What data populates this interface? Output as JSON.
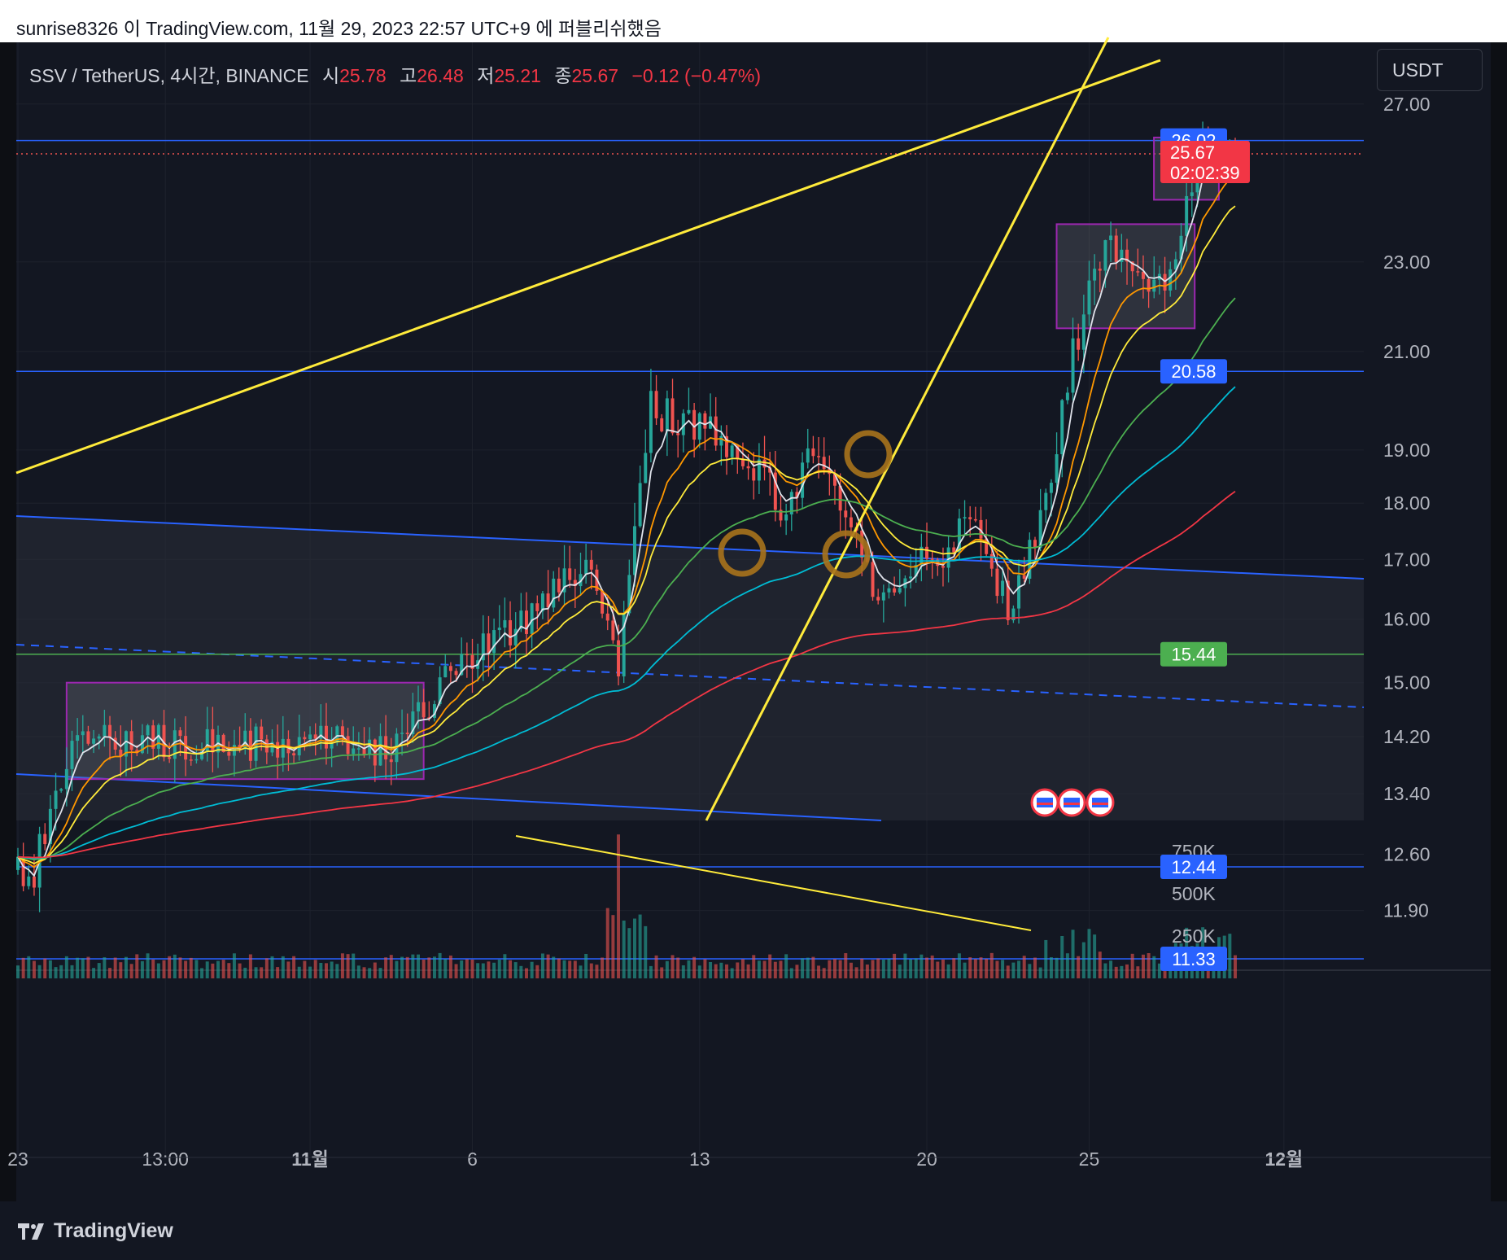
{
  "caption": "sunrise8326 이 TradingView.com, 11월 29, 2023 22:57 UTC+9 에 퍼블리쉬했음",
  "legend": {
    "symbol": "SSV / TetherUS, 4시간, BINANCE",
    "open_label": "시",
    "open": "25.78",
    "high_label": "고",
    "high": "26.48",
    "low_label": "저",
    "low": "25.21",
    "close_label": "종",
    "close": "25.67",
    "change": "−0.12 (−0.47%)"
  },
  "currency": "USDT",
  "brand": "TradingView",
  "colors": {
    "background": "#131722",
    "up": "#26a69a",
    "down": "#ef5350",
    "trendline": "#ffeb3b",
    "hline": "#2962ff",
    "support": "#4caf50",
    "box_border": "#9c27b0",
    "highlight_circle": "#a8731c"
  },
  "chart_data": {
    "type": "candlestick",
    "timeframe": "4h",
    "scale": "log",
    "x_ticks": [
      "23",
      "13:00",
      "11월",
      "6",
      "13",
      "20",
      "25",
      "12월"
    ],
    "y_ticks": [
      "27.00",
      "23.00",
      "21.00",
      "19.00",
      "18.00",
      "17.00",
      "16.00",
      "15.00",
      "14.20",
      "13.40",
      "12.60",
      "11.90"
    ],
    "volume_ticks": [
      "750K",
      "500K",
      "250K"
    ],
    "price_badges": [
      {
        "label": "26.02",
        "value": 26.02,
        "kind": "level"
      },
      {
        "label": "20.58",
        "value": 20.58,
        "kind": "level"
      },
      {
        "label": "15.44",
        "value": 15.44,
        "kind": "support"
      },
      {
        "label": "12.44",
        "value": 12.44,
        "kind": "level"
      },
      {
        "label": "11.33",
        "value": 11.33,
        "kind": "level"
      }
    ],
    "last_price": {
      "value": "25.67",
      "countdown": "02:02:39"
    },
    "ohlc_last": {
      "open": 25.78,
      "high": 26.48,
      "low": 25.21,
      "close": 25.67
    },
    "close_series_approx": [
      {
        "date": "2023-10-23",
        "close": 12.4
      },
      {
        "date": "2023-10-24",
        "close": 14.0
      },
      {
        "date": "2023-10-26",
        "close": 14.2
      },
      {
        "date": "2023-10-29",
        "close": 14.1
      },
      {
        "date": "2023-11-01",
        "close": 14.2
      },
      {
        "date": "2023-11-03",
        "close": 14.0
      },
      {
        "date": "2023-11-05",
        "close": 15.3
      },
      {
        "date": "2023-11-07",
        "close": 16.0
      },
      {
        "date": "2023-11-09",
        "close": 16.8
      },
      {
        "date": "2023-11-10",
        "close": 15.4
      },
      {
        "date": "2023-11-11",
        "close": 19.8
      },
      {
        "date": "2023-11-13",
        "close": 19.4
      },
      {
        "date": "2023-11-15",
        "close": 18.0
      },
      {
        "date": "2023-11-16",
        "close": 18.9
      },
      {
        "date": "2023-11-18",
        "close": 16.3
      },
      {
        "date": "2023-11-19",
        "close": 16.8
      },
      {
        "date": "2023-11-21",
        "close": 17.6
      },
      {
        "date": "2023-11-22",
        "close": 16.1
      },
      {
        "date": "2023-11-23",
        "close": 17.6
      },
      {
        "date": "2023-11-24",
        "close": 21.0
      },
      {
        "date": "2023-11-25",
        "close": 23.5
      },
      {
        "date": "2023-11-26",
        "close": 22.9
      },
      {
        "date": "2023-11-27",
        "close": 22.5
      },
      {
        "date": "2023-11-28",
        "close": 25.9
      },
      {
        "date": "2023-11-29",
        "close": 25.67
      }
    ],
    "volume_peak": "≈850K"
  }
}
